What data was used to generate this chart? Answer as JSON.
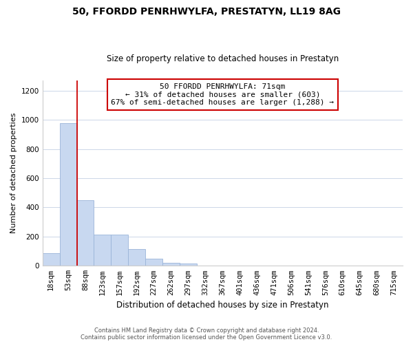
{
  "title": "50, FFORDD PENRHWYLFA, PRESTATYN, LL19 8AG",
  "subtitle": "Size of property relative to detached houses in Prestatyn",
  "xlabel": "Distribution of detached houses by size in Prestatyn",
  "ylabel": "Number of detached properties",
  "bar_labels": [
    "18sqm",
    "53sqm",
    "88sqm",
    "123sqm",
    "157sqm",
    "192sqm",
    "227sqm",
    "262sqm",
    "297sqm",
    "332sqm",
    "367sqm",
    "401sqm",
    "436sqm",
    "471sqm",
    "506sqm",
    "541sqm",
    "576sqm",
    "610sqm",
    "645sqm",
    "680sqm",
    "715sqm"
  ],
  "bar_values": [
    85,
    975,
    450,
    215,
    215,
    115,
    50,
    20,
    15,
    0,
    0,
    0,
    0,
    0,
    0,
    0,
    0,
    0,
    0,
    0,
    0
  ],
  "bar_color": "#c8d8f0",
  "bar_edge_color": "#9ab4d8",
  "vline_x_data": 1.5,
  "vline_color": "#cc0000",
  "ylim": [
    0,
    1270
  ],
  "yticks": [
    0,
    200,
    400,
    600,
    800,
    1000,
    1200
  ],
  "ann_line1": "50 FFORDD PENRHWYLFA: 71sqm",
  "ann_line2": "← 31% of detached houses are smaller (603)",
  "ann_line3": "67% of semi-detached houses are larger (1,288) →",
  "footer_line1": "Contains HM Land Registry data © Crown copyright and database right 2024.",
  "footer_line2": "Contains public sector information licensed under the Open Government Licence v3.0.",
  "background_color": "#ffffff",
  "grid_color": "#ccd6e8",
  "title_fontsize": 10,
  "subtitle_fontsize": 8.5,
  "ylabel_fontsize": 8,
  "xlabel_fontsize": 8.5,
  "tick_fontsize": 7.5,
  "ann_fontsize": 8,
  "footer_fontsize": 6
}
